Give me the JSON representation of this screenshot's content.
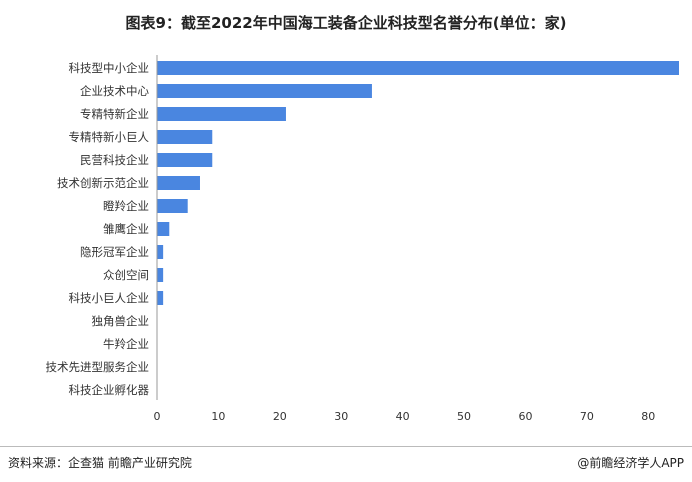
{
  "title": "图表9：截至2022年中国海工装备企业科技型名誉分布(单位：家)",
  "source": "资料来源：企查猫 前瞻产业研究院",
  "brand": "@前瞻经济学人APP",
  "colors": {
    "bar": "#4a86e0",
    "axis": "#999999",
    "grid": "#e8e8e8"
  },
  "chart_data": {
    "type": "bar",
    "orientation": "horizontal",
    "categories": [
      "科技型中小企业",
      "企业技术中心",
      "专精特新企业",
      "专精特新小巨人",
      "民营科技企业",
      "技术创新示范企业",
      "瞪羚企业",
      "雏鹰企业",
      "隐形冠军企业",
      "众创空间",
      "科技小巨人企业",
      "独角兽企业",
      "牛羚企业",
      "技术先进型服务企业",
      "科技企业孵化器"
    ],
    "values": [
      85,
      35,
      21,
      9,
      9,
      7,
      5,
      2,
      1,
      1,
      1,
      0,
      0,
      0,
      0
    ],
    "xlim": [
      0,
      85
    ],
    "xticks": [
      0,
      10,
      20,
      30,
      40,
      50,
      60,
      70,
      80
    ],
    "grid": false,
    "legend": "none"
  }
}
